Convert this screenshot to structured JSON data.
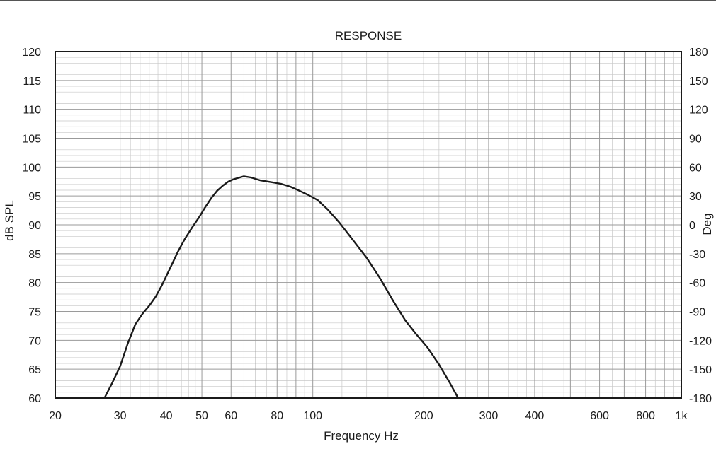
{
  "chart_data": {
    "type": "line",
    "title": "RESPONSE",
    "xlabel": "Frequency Hz",
    "ylabel": "dB SPL",
    "y2label": "Deg",
    "x_scale": "log",
    "xlim": [
      20,
      1000
    ],
    "ylim": [
      60,
      120
    ],
    "y2lim": [
      -180,
      180
    ],
    "grid": true,
    "x_tick_labels": [
      {
        "value": 20,
        "label": "20"
      },
      {
        "value": 30,
        "label": "30"
      },
      {
        "value": 40,
        "label": "40"
      },
      {
        "value": 50,
        "label": "50"
      },
      {
        "value": 60,
        "label": "60"
      },
      {
        "value": 80,
        "label": "80"
      },
      {
        "value": 100,
        "label": "100"
      },
      {
        "value": 200,
        "label": "200"
      },
      {
        "value": 300,
        "label": "300"
      },
      {
        "value": 400,
        "label": "400"
      },
      {
        "value": 600,
        "label": "600"
      },
      {
        "value": 800,
        "label": "800"
      },
      {
        "value": 1000,
        "label": "1k"
      }
    ],
    "y_ticks": [
      60,
      65,
      70,
      75,
      80,
      85,
      90,
      95,
      100,
      105,
      110,
      115,
      120
    ],
    "y2_ticks": [
      -180,
      -150,
      -120,
      -90,
      -60,
      -30,
      0,
      30,
      60,
      90,
      120,
      150,
      180
    ],
    "line_color": "#1a1a1a",
    "grid_color": "#c8c8c8",
    "series": [
      {
        "x": [
          27.2,
          28.5,
          30,
          31.5,
          33,
          34.5,
          36,
          37.5,
          39,
          41,
          43,
          45,
          47,
          49,
          51,
          53,
          55,
          57,
          59,
          61,
          62.5,
          65,
          68,
          72,
          77,
          82,
          87,
          92,
          97,
          103,
          110,
          118,
          128,
          140,
          152,
          165,
          178,
          190,
          205,
          220,
          235,
          248
        ],
        "y": [
          60,
          62.5,
          65.5,
          69.5,
          72.8,
          74.6,
          76,
          77.6,
          79.6,
          82.5,
          85.3,
          87.6,
          89.5,
          91.2,
          93,
          94.6,
          95.9,
          96.8,
          97.5,
          97.9,
          98.1,
          98.4,
          98.2,
          97.7,
          97.4,
          97.1,
          96.6,
          95.9,
          95.2,
          94.3,
          92.6,
          90.4,
          87.5,
          84.3,
          80.8,
          76.9,
          73.5,
          71.2,
          68.7,
          65.8,
          62.7,
          60
        ]
      }
    ]
  }
}
